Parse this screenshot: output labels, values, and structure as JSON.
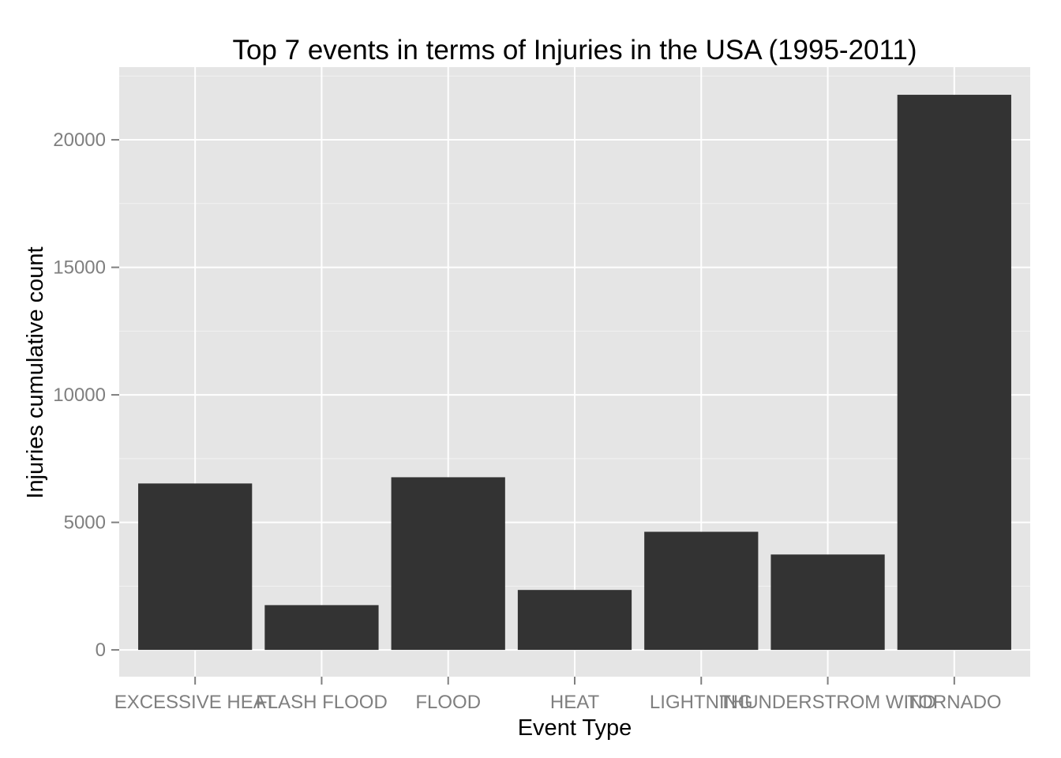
{
  "chart_data": {
    "type": "bar",
    "title": "Top 7 events in terms of Injuries in the USA (1995-2011)",
    "xlabel": "Event Type",
    "ylabel": "Injuries cumulative count",
    "categories": [
      "EXCESSIVE HEAT",
      "FLASH FLOOD",
      "FLOOD",
      "HEAT",
      "LIGHTNING",
      "THUNDERSTROM WIND",
      "TORNADO"
    ],
    "values": [
      6525,
      1755,
      6769,
      2350,
      4631,
      3740,
      21765
    ],
    "ylim": [
      -1050,
      22850
    ],
    "yticks": [
      0,
      5000,
      10000,
      15000,
      20000
    ],
    "ytick_labels": [
      "0",
      "5000",
      "10000",
      "15000",
      "20000"
    ],
    "grid": true,
    "colors": {
      "panel_bg": "#e5e5e5",
      "grid_major": "#ffffff",
      "grid_minor": "#f2f2f2",
      "bar_fill": "#333333",
      "tick_label": "#7f7f7f",
      "tick_mark": "#7f7f7f",
      "text": "#000000"
    }
  }
}
